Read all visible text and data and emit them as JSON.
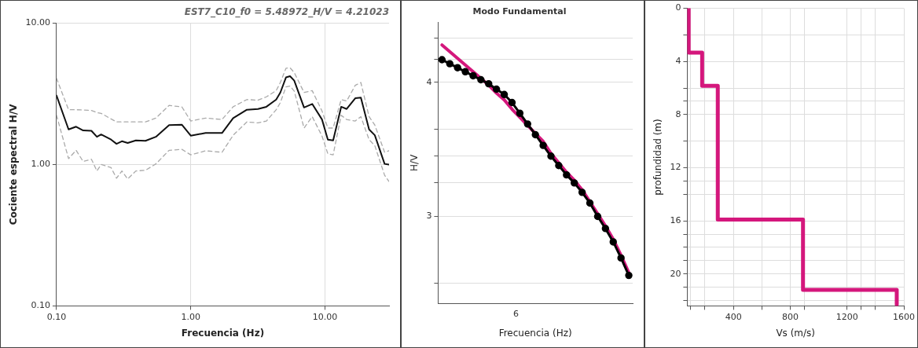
{
  "chart_data": [
    {
      "type": "line",
      "title": "EST7_C10_f0 = 5.48972_H/V = 4.21023",
      "xlabel": "Frecuencia (Hz)",
      "ylabel": "Cociente espectral H/V",
      "log": "xy",
      "grid": true,
      "x": [
        0.1,
        0.123,
        0.14,
        0.158,
        0.182,
        0.2,
        0.215,
        0.255,
        0.28,
        0.307,
        0.339,
        0.39,
        0.46,
        0.55,
        0.69,
        0.86,
        1.0,
        1.29,
        1.71,
        2.07,
        2.62,
        3.17,
        3.66,
        4.33,
        4.65,
        5.12,
        5.49,
        5.9,
        6.98,
        8.03,
        9.5,
        10.5,
        11.5,
        13.2,
        14.5,
        16.8,
        18.5,
        21.3,
        23.5,
        27.8,
        29.9
      ],
      "xlim": [
        0.1,
        30
      ],
      "ylim": [
        0.1,
        10
      ],
      "xticks": [
        {
          "value": 0.1,
          "label": "0.10"
        },
        {
          "value": 1,
          "label": "1.00"
        },
        {
          "value": 10,
          "label": "10.00"
        }
      ],
      "yticks": [
        {
          "value": 0.1,
          "label": "0.10"
        },
        {
          "value": 1,
          "label": "1.00"
        },
        {
          "value": 10,
          "label": "10.00"
        }
      ],
      "series": [
        {
          "color": "#aaaaaa",
          "line_style": "dashed",
          "marker": "none",
          "values": [
            4.07,
            2.44,
            2.44,
            2.43,
            2.41,
            2.33,
            2.3,
            2.1,
            2.0,
            2.0,
            2.0,
            2.0,
            2.0,
            2.13,
            2.62,
            2.55,
            2.03,
            2.13,
            2.08,
            2.56,
            2.88,
            2.85,
            3.01,
            3.33,
            3.8,
            4.79,
            4.83,
            4.47,
            3.23,
            3.33,
            2.39,
            1.81,
            1.81,
            2.88,
            2.81,
            3.63,
            3.8,
            2.18,
            1.9,
            1.22,
            1.25
          ]
        },
        {
          "color": "#aaaaaa",
          "line_style": "dashed",
          "marker": "none",
          "values": [
            2.23,
            1.1,
            1.26,
            1.05,
            1.09,
            0.9,
            1.0,
            0.95,
            0.8,
            0.9,
            0.79,
            0.9,
            0.91,
            1.01,
            1.26,
            1.28,
            1.17,
            1.25,
            1.22,
            1.61,
            2.0,
            1.97,
            2.03,
            2.44,
            2.74,
            3.54,
            3.59,
            3.31,
            1.81,
            2.18,
            1.59,
            1.19,
            1.17,
            2.23,
            2.08,
            2.03,
            2.18,
            1.5,
            1.36,
            0.84,
            0.76
          ]
        },
        {
          "color": "#111111",
          "line_style": "solid",
          "marker": "none",
          "values": [
            3.08,
            1.77,
            1.85,
            1.74,
            1.73,
            1.57,
            1.63,
            1.5,
            1.4,
            1.46,
            1.42,
            1.48,
            1.47,
            1.57,
            1.9,
            1.91,
            1.6,
            1.67,
            1.67,
            2.13,
            2.44,
            2.47,
            2.56,
            2.88,
            3.23,
            4.13,
            4.21,
            3.92,
            2.53,
            2.68,
            2.08,
            1.5,
            1.48,
            2.56,
            2.47,
            2.94,
            2.97,
            1.77,
            1.61,
            1.01,
            1.0
          ]
        }
      ]
    },
    {
      "type": "line",
      "title": "Modo Fundamental",
      "xlabel": "Frecuencia (Hz)",
      "ylabel": "H/V",
      "grid": "y",
      "annotations": [
        "6"
      ],
      "categories": [
        null,
        null,
        null,
        null,
        null,
        null,
        null,
        null,
        null,
        null,
        null,
        null,
        null,
        null,
        null,
        null,
        null,
        null,
        null,
        null,
        null,
        null,
        null,
        null,
        null
      ],
      "ylim": [
        2.35,
        4.45
      ],
      "yticks": [
        {
          "value": 2.5,
          "label": null
        },
        {
          "value": 3,
          "label": "3"
        },
        {
          "value": 3.25,
          "label": null
        },
        {
          "value": 3.45,
          "label": null
        },
        {
          "value": 3.65,
          "label": null
        },
        {
          "value": 4,
          "label": "4"
        },
        {
          "value": 4.17,
          "label": null
        },
        {
          "value": 4.33,
          "label": null
        }
      ],
      "series": [
        {
          "color": "#d4177c",
          "marker": "none",
          "line_style": "solid",
          "values": [
            4.28,
            4.23,
            4.18,
            4.13,
            4.08,
            4.03,
            3.98,
            3.92,
            3.87,
            3.8,
            3.74,
            3.68,
            3.62,
            3.56,
            3.47,
            3.4,
            3.33,
            3.27,
            3.2,
            3.11,
            3.02,
            2.93,
            2.83,
            2.71,
            2.58
          ]
        },
        {
          "color": "#000000",
          "marker": "circle",
          "line_style": "solid",
          "values": [
            4.17,
            4.14,
            4.11,
            4.08,
            4.05,
            4.02,
            3.99,
            3.95,
            3.91,
            3.85,
            3.77,
            3.69,
            3.61,
            3.53,
            3.45,
            3.38,
            3.31,
            3.25,
            3.18,
            3.1,
            3.0,
            2.91,
            2.81,
            2.69,
            2.56
          ]
        }
      ]
    },
    {
      "type": "line",
      "xlabel": "Vs (m/s)",
      "ylabel": "profundidad (m)",
      "grid": true,
      "xlim": [
        75,
        1600
      ],
      "ylim": [
        22.4,
        0
      ],
      "xticks": [
        {
          "value": 100,
          "label": null
        },
        {
          "value": 200,
          "label": null
        },
        400,
        {
          "value": 600,
          "label": null
        },
        800,
        {
          "value": 900,
          "label": null
        },
        1200,
        {
          "value": 1300,
          "label": null
        },
        {
          "value": 1400,
          "label": null
        },
        1600
      ],
      "yticks": [
        0,
        {
          "value": 2,
          "label": null
        },
        4,
        {
          "value": 6,
          "label": null
        },
        {
          "value": 7,
          "label": null
        },
        8,
        {
          "value": 10,
          "label": null
        },
        12,
        {
          "value": 13,
          "label": null
        },
        {
          "value": 14,
          "label": null
        },
        16,
        {
          "value": 17,
          "label": null
        },
        {
          "value": 18,
          "label": null
        },
        {
          "value": 19,
          "label": null
        },
        20,
        {
          "value": 21,
          "label": null
        },
        {
          "value": 22,
          "label": null
        }
      ],
      "series": [
        {
          "color": "#d4177c",
          "marker": "none",
          "line_style": "solid",
          "x": [
            85,
            85,
            180,
            180,
            290,
            290,
            890,
            890,
            1550,
            1550
          ],
          "values": [
            0,
            3.33,
            3.33,
            5.84,
            5.84,
            15.9,
            15.9,
            21.2,
            21.2,
            22.3
          ]
        }
      ]
    }
  ]
}
